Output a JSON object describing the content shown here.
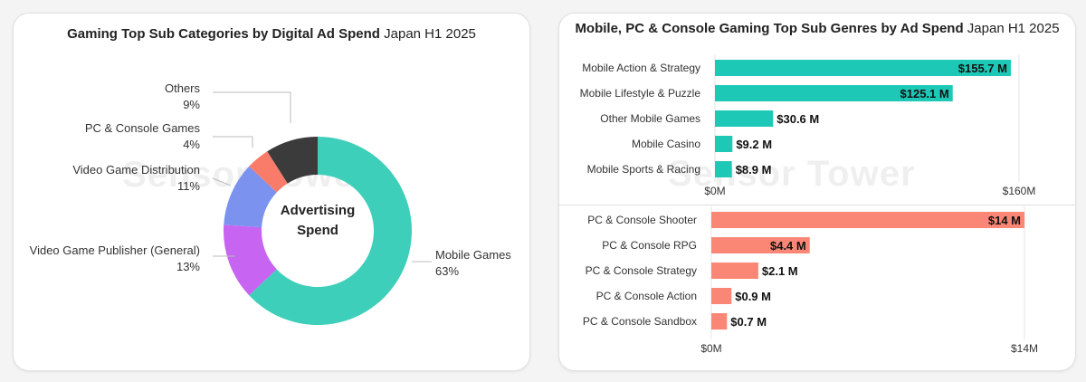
{
  "left_title": {
    "bold": "Gaming Top Sub Categories by Digital Ad Spend",
    "normal": " Japan H1 2025"
  },
  "right_title": {
    "bold": "Mobile, PC & Console Gaming Top Sub Genres by Ad Spend",
    "normal": " Japan H1 2025"
  },
  "watermark": "Sensor Tower",
  "chart_data": [
    {
      "type": "pie",
      "title": "Gaming Top Sub Categories by Digital Ad Spend Japan H1 2025",
      "center_label": [
        "Advertising",
        "Spend"
      ],
      "slices": [
        {
          "label": "Mobile Games",
          "value": 63,
          "pct": "63%",
          "color": "#3ecfba"
        },
        {
          "label": "Video Game Publisher (General)",
          "value": 13,
          "pct": "13%",
          "color": "#c764f2"
        },
        {
          "label": "Video Game Distribution",
          "value": 11,
          "pct": "11%",
          "color": "#7b93ef"
        },
        {
          "label": "PC & Console Games",
          "value": 4,
          "pct": "4%",
          "color": "#f97c6b"
        },
        {
          "label": "Others",
          "value": 9,
          "pct": "9%",
          "color": "#3b3b3b"
        }
      ]
    },
    {
      "type": "bar",
      "orientation": "horizontal",
      "color": "#1ec8b6",
      "categories": [
        "Mobile Action & Strategy",
        "Mobile Lifestyle & Puzzle",
        "Other Mobile Games",
        "Mobile Casino",
        "Mobile Sports & Racing"
      ],
      "values": [
        155.7,
        125.1,
        30.6,
        9.2,
        8.9
      ],
      "labels": [
        "$155.7 M",
        "$125.1 M",
        "$30.6 M",
        "$9.2 M",
        "$8.9 M"
      ],
      "xlim": [
        0,
        160
      ],
      "xticks": [
        "$0M",
        "$160M"
      ]
    },
    {
      "type": "bar",
      "orientation": "horizontal",
      "color": "#fa8775",
      "categories": [
        "PC & Console Shooter",
        "PC & Console RPG",
        "PC & Console Strategy",
        "PC & Console Action",
        "PC & Console Sandbox"
      ],
      "values": [
        14,
        4.4,
        2.1,
        0.9,
        0.7
      ],
      "labels": [
        "$14 M",
        "$4.4 M",
        "$2.1 M",
        "$0.9 M",
        "$0.7 M"
      ],
      "xlim": [
        0,
        14
      ],
      "xticks": [
        "$0M",
        "$14M"
      ]
    }
  ]
}
